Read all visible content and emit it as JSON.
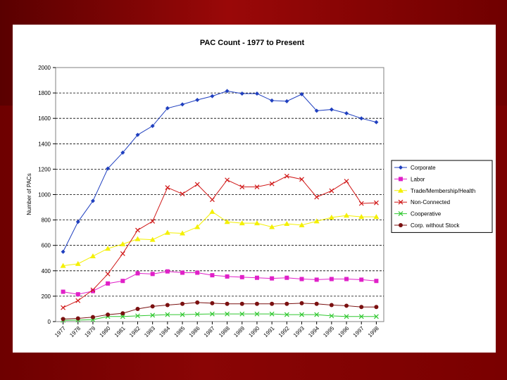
{
  "chart_data": {
    "type": "line",
    "title": "PAC Count - 1977 to Present",
    "ylabel": "Number of PACs",
    "xlabel": "",
    "ylim": [
      0,
      2000
    ],
    "y_ticks": [
      0,
      200,
      400,
      600,
      800,
      1000,
      1200,
      1400,
      1600,
      1800,
      2000
    ],
    "grid": "horizontal dashed",
    "legend_position": "right",
    "categories": [
      "1977",
      "1978",
      "1979",
      "1980",
      "1981",
      "1982",
      "1983",
      "1984",
      "1985",
      "1986",
      "1987",
      "1988",
      "1989",
      "1990",
      "1991",
      "1992",
      "1993",
      "1994",
      "1995",
      "1996",
      "1997",
      "1998"
    ],
    "series": [
      {
        "name": "Corporate",
        "color": "#1f3fbf",
        "marker": "diamond",
        "values": [
          550,
          785,
          950,
          1205,
          1330,
          1470,
          1540,
          1680,
          1710,
          1745,
          1775,
          1815,
          1795,
          1795,
          1740,
          1735,
          1790,
          1660,
          1670,
          1640,
          1600,
          1570
        ]
      },
      {
        "name": "Labor",
        "color": "#e020c8",
        "marker": "square",
        "values": [
          235,
          215,
          240,
          300,
          320,
          380,
          375,
          395,
          385,
          385,
          365,
          355,
          350,
          345,
          340,
          345,
          335,
          330,
          335,
          335,
          330,
          320
        ]
      },
      {
        "name": "Trade/Membership/Health",
        "color": "#f4f000",
        "marker": "triangle",
        "values": [
          440,
          455,
          515,
          575,
          610,
          650,
          645,
          700,
          695,
          745,
          865,
          785,
          775,
          775,
          745,
          770,
          760,
          790,
          820,
          835,
          825,
          825
        ]
      },
      {
        "name": "Non-Connected",
        "color": "#d01818",
        "marker": "x",
        "values": [
          110,
          165,
          250,
          375,
          535,
          720,
          790,
          1055,
          1005,
          1080,
          960,
          1115,
          1060,
          1060,
          1085,
          1145,
          1120,
          980,
          1030,
          1105,
          930,
          935
        ]
      },
      {
        "name": "Cooperative",
        "color": "#30c830",
        "marker": "x",
        "values": [
          10,
          12,
          15,
          40,
          40,
          45,
          50,
          55,
          55,
          58,
          60,
          60,
          60,
          60,
          60,
          55,
          55,
          55,
          45,
          40,
          40,
          40
        ]
      },
      {
        "name": "Corp. without Stock",
        "color": "#7a1010",
        "marker": "circle",
        "values": [
          20,
          25,
          35,
          55,
          65,
          100,
          120,
          130,
          140,
          150,
          145,
          140,
          140,
          140,
          140,
          140,
          145,
          140,
          130,
          125,
          115,
          115
        ]
      }
    ]
  }
}
